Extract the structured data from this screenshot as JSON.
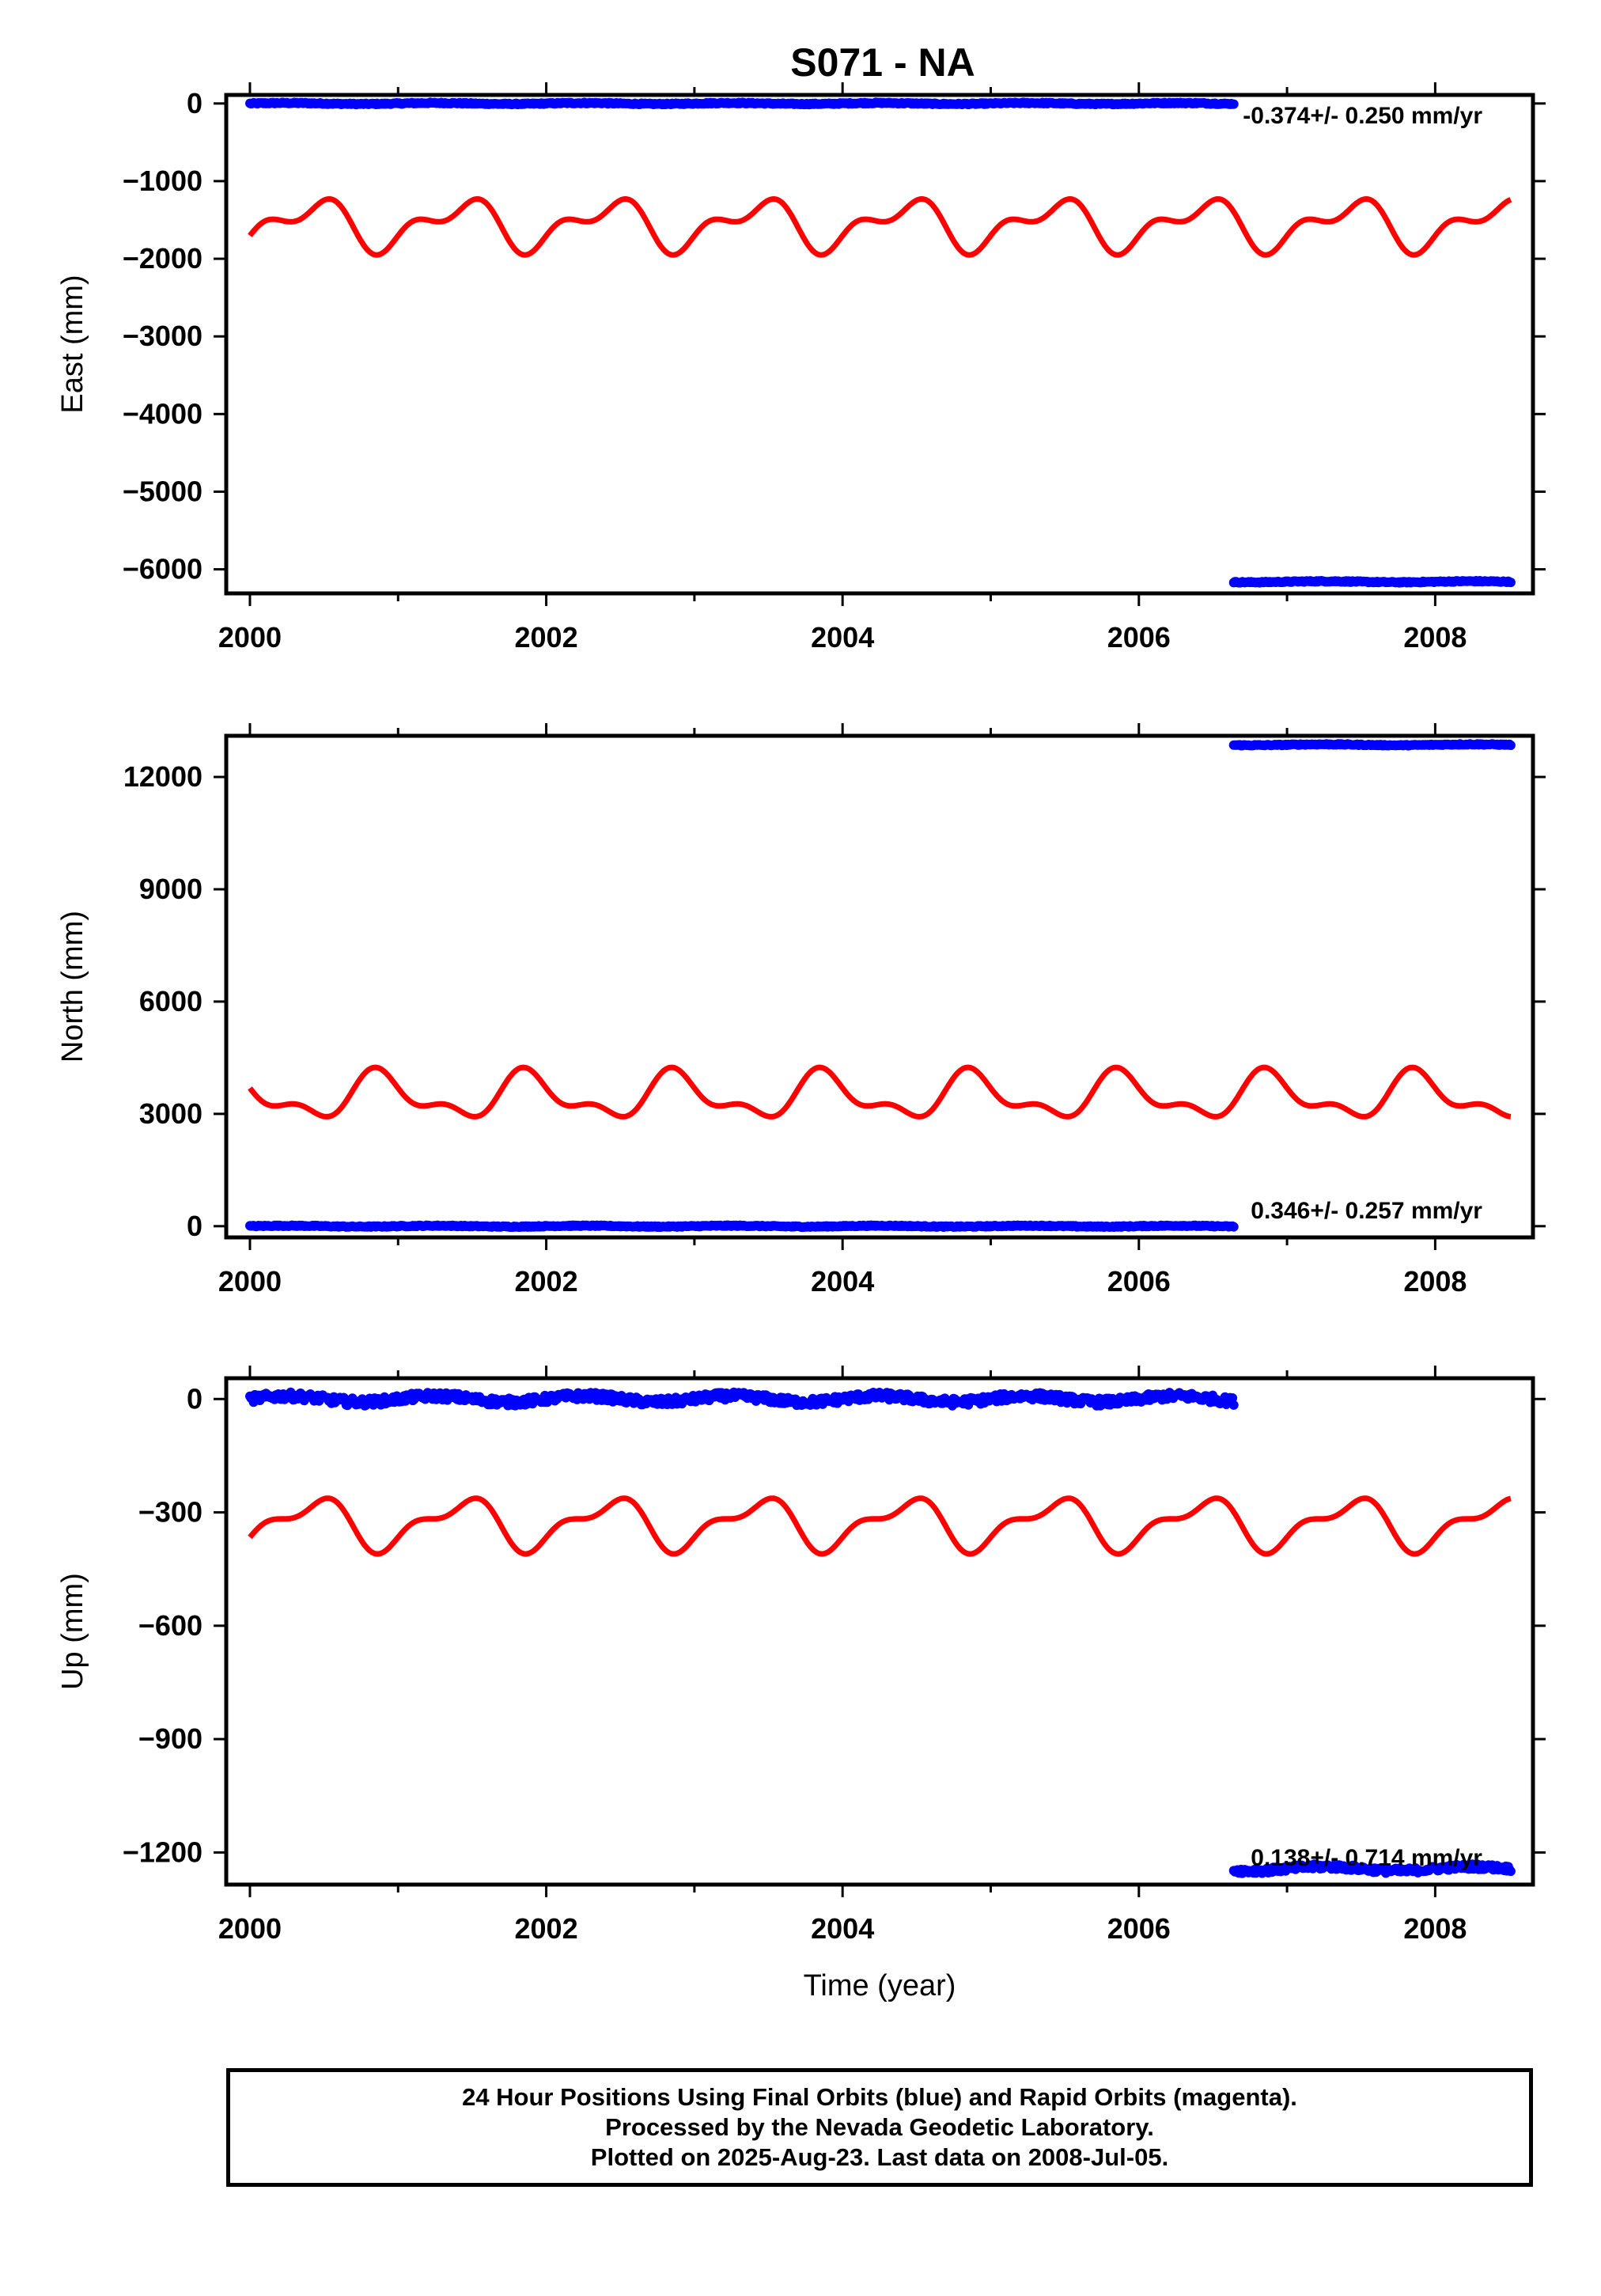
{
  "colors": {
    "final": "#0000ff",
    "model": "#ff0000",
    "axis": "#000000"
  },
  "footer": {
    "line1": "24 Hour Positions Using Final Orbits (blue) and Rapid Orbits (magenta).",
    "line2": "Processed by the Nevada Geodetic Laboratory.",
    "line3": "Plotted on 2025-Aug-23. Last data on 2008-Jul-05."
  },
  "chart_data": [
    {
      "type": "scatter",
      "title": "S071 - NA",
      "ylabel": "East (mm)",
      "xlabel": "",
      "xlim": [
        1999.84,
        2008.66
      ],
      "ylim": [
        -6310,
        110
      ],
      "xticks": [
        2000,
        2002,
        2004,
        2006,
        2008
      ],
      "yticks": [
        0,
        -1000,
        -2000,
        -3000,
        -4000,
        -5000,
        -6000
      ],
      "ytick_labels": [
        "0",
        "−1000",
        "−2000",
        "−3000",
        "−4000",
        "−5000",
        "−6000"
      ],
      "rate_label": "-0.374+/- 0.250 mm/yr",
      "series": [
        {
          "color": "#0000ff",
          "kind": "points",
          "segments": [
            {
              "x_start": 2000.0,
              "x_end": 2006.64,
              "y": 0,
              "noise": 8
            },
            {
              "x_start": 2006.64,
              "x_end": 2008.51,
              "y": -6160,
              "noise": 8
            }
          ]
        },
        {
          "color": "#ff0000",
          "kind": "line",
          "model": {
            "x_start": 2000.0,
            "x_end": 2008.51,
            "offset": -1560,
            "a1": 260,
            "phase1_year": 2000.42,
            "a2": 160,
            "phase2_year": 2000.08
          }
        }
      ]
    },
    {
      "type": "scatter",
      "title": "",
      "ylabel": "North (mm)",
      "xlabel": "",
      "xlim": [
        1999.84,
        2008.66
      ],
      "ylim": [
        -300,
        13100
      ],
      "xticks": [
        2000,
        2002,
        2004,
        2006,
        2008
      ],
      "yticks": [
        0,
        3000,
        6000,
        9000,
        12000
      ],
      "ytick_labels": [
        "0",
        "3000",
        "6000",
        "9000",
        "12000"
      ],
      "rate_label": "0.346+/- 0.257 mm/yr",
      "series": [
        {
          "color": "#0000ff",
          "kind": "points",
          "segments": [
            {
              "x_start": 2000.0,
              "x_end": 2006.64,
              "y": 0,
              "noise": 15
            },
            {
              "x_start": 2006.64,
              "x_end": 2008.51,
              "y": 12860,
              "noise": 15
            }
          ]
        },
        {
          "color": "#ff0000",
          "kind": "line",
          "model": {
            "x_start": 2000.0,
            "x_end": 2008.51,
            "offset": 3460,
            "a1": 520,
            "phase1_year": 2000.88,
            "a2": 280,
            "phase2_year": 2000.33
          }
        }
      ]
    },
    {
      "type": "scatter",
      "title": "",
      "ylabel": "Up (mm)",
      "xlabel": "Time (year)",
      "xlim": [
        1999.84,
        2008.66
      ],
      "ylim": [
        -1285,
        55
      ],
      "xticks": [
        2000,
        2002,
        2004,
        2006,
        2008
      ],
      "yticks": [
        0,
        -300,
        -600,
        -900,
        -1200
      ],
      "ytick_labels": [
        "0",
        "−300",
        "−600",
        "−900",
        "−1200"
      ],
      "rate_label": "0.138+/- 0.714 mm/yr",
      "series": [
        {
          "color": "#0000ff",
          "kind": "points",
          "segments": [
            {
              "x_start": 2000.0,
              "x_end": 2006.64,
              "y": 0,
              "noise": 10
            },
            {
              "x_start": 2006.64,
              "x_end": 2008.51,
              "y": -1243,
              "noise": 7
            }
          ]
        },
        {
          "color": "#ff0000",
          "kind": "line",
          "model": {
            "x_start": 2000.0,
            "x_end": 2008.51,
            "offset": -330,
            "a1": 58,
            "phase1_year": 2000.42,
            "a2": 28,
            "phase2_year": 2000.08
          }
        }
      ]
    }
  ]
}
